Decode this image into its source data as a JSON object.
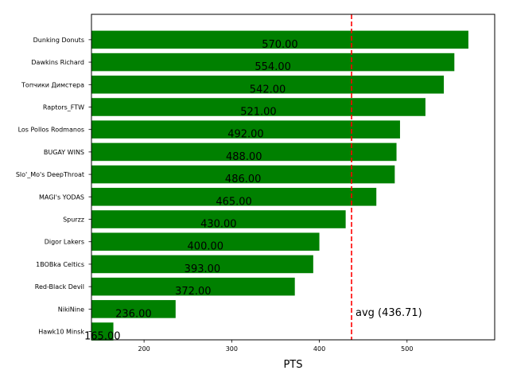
{
  "chart_data": {
    "type": "bar",
    "orientation": "horizontal",
    "categories": [
      "Dunking Donuts",
      "Dawkins Richard",
      "Топчики Димстера",
      "Raptors_FTW",
      "Los Pollos Rodmanos",
      "BUGAY WINS",
      "Slo'_Mo's DeepThroat",
      "MAGI's YODAS",
      "Spurzz",
      "Digor Lakers",
      "1BOBka Celtics",
      "Red-Black Devil",
      "NikiNine",
      "Hawk10 Minsk"
    ],
    "values": [
      570,
      554,
      542,
      521,
      492,
      488,
      486,
      465,
      430,
      400,
      393,
      372,
      236,
      165
    ],
    "value_labels": [
      "570.00",
      "554.00",
      "542.00",
      "521.00",
      "492.00",
      "488.00",
      "486.00",
      "465.00",
      "430.00",
      "400.00",
      "393.00",
      "372.00",
      "236.00",
      "165.00"
    ],
    "xlabel": "PTS",
    "xlim": [
      140,
      600
    ],
    "xticks": [
      200,
      300,
      400,
      500
    ],
    "average": 436.71,
    "average_label": "avg (436.71)",
    "bar_color": "#008000",
    "average_line_color": "#ff0000",
    "grid": false
  }
}
